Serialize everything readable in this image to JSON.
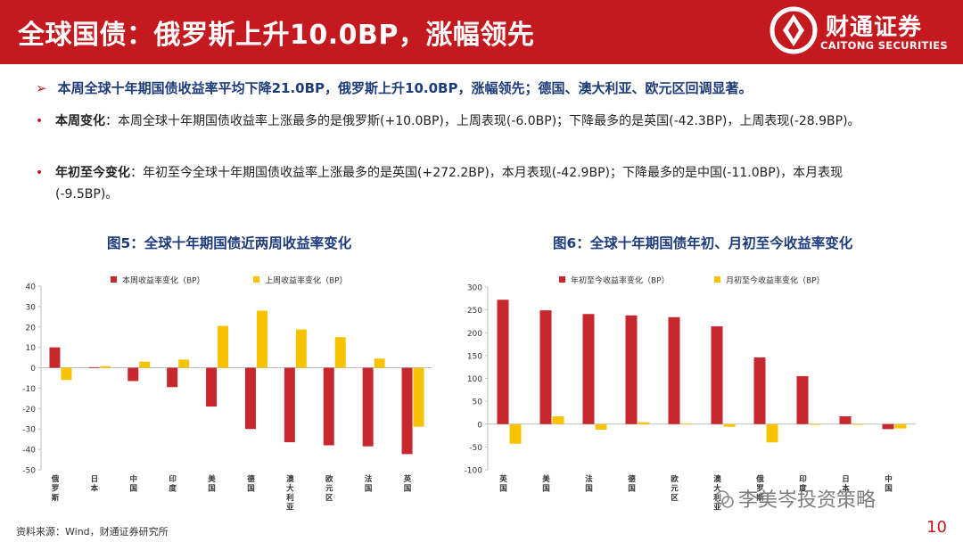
{
  "header": {
    "title": "全球国债：俄罗斯上升10.0BP，涨幅领先",
    "logo_cn": "财通证券",
    "logo_en": "CAITONG SECURITIES"
  },
  "summary": {
    "arrow": "➢",
    "text": "本周全球十年期国债收益率平均下降21.0BP，俄罗斯上升10.0BP，涨幅领先；德国、澳大利亚、欧元区回调显著。"
  },
  "bullets": [
    {
      "label": "本周变化",
      "text": "：本周全球十年期国债收益率上涨最多的是俄罗斯(+10.0BP)，上周表现(-6.0BP)；下降最多的是英国(-42.3BP)，上周表现(-28.9BP)。"
    },
    {
      "label": "年初至今变化",
      "text": "：年初至今全球十年期国债收益率上涨最多的是英国(+272.2BP)，本月表现(-42.9BP)；下降最多的是中国(-11.0BP)，本月表现(-9.5BP)。"
    }
  ],
  "figures": {
    "fig5_title": "图5：全球十年期国债近两周收益率变化",
    "fig6_title": "图6：全球十年期国债年初、月初至今收益率变化"
  },
  "footer": {
    "source": "资料来源：Wind，财通证券研究所",
    "page": "10",
    "watermark": "李美岑投资策略"
  },
  "colors": {
    "red": "#c7282e",
    "yellow": "#f7c300",
    "brand": "#c41a1f",
    "title_blue": "#1f3c7a"
  },
  "chart_data": [
    {
      "type": "bar",
      "categories": [
        "俄罗斯",
        "日本",
        "中国",
        "印度",
        "美国",
        "德国",
        "澳大利亚",
        "欧元区",
        "法国",
        "英国"
      ],
      "series": [
        {
          "name": "本周收益率变化（BP）",
          "values": [
            10.0,
            0.3,
            -6.5,
            -9.5,
            -19.0,
            -30.0,
            -36.5,
            -38.0,
            -38.5,
            -42.3
          ]
        },
        {
          "name": "上周收益率变化（BP）",
          "values": [
            -6.0,
            0.8,
            3.0,
            4.0,
            20.5,
            28.0,
            18.8,
            15.0,
            4.5,
            -28.9
          ]
        }
      ],
      "ylim": [
        -50,
        40
      ],
      "yticks": [
        40,
        30,
        20,
        10,
        0,
        -10,
        -20,
        -30,
        -40,
        -50
      ],
      "legend": "top",
      "grid": false
    },
    {
      "type": "bar",
      "categories": [
        "英国",
        "美国",
        "法国",
        "德国",
        "欧元区",
        "澳大利亚",
        "俄罗斯",
        "印度",
        "日本",
        "中国"
      ],
      "series": [
        {
          "name": "年初至今收益率变化（BP）",
          "values": [
            272.2,
            249.0,
            241.0,
            238.0,
            234.0,
            214.0,
            146.0,
            105.0,
            17.0,
            -11.0
          ]
        },
        {
          "name": "月初至今收益率变化（BP）",
          "values": [
            -42.9,
            17.0,
            -12.0,
            4.0,
            1.0,
            -6.0,
            -40.0,
            0.0,
            -1.0,
            -9.5
          ]
        }
      ],
      "ylim": [
        -100,
        300
      ],
      "yticks": [
        300,
        250,
        200,
        150,
        100,
        50,
        0,
        -50,
        -100
      ],
      "legend": "top",
      "grid": false
    }
  ]
}
